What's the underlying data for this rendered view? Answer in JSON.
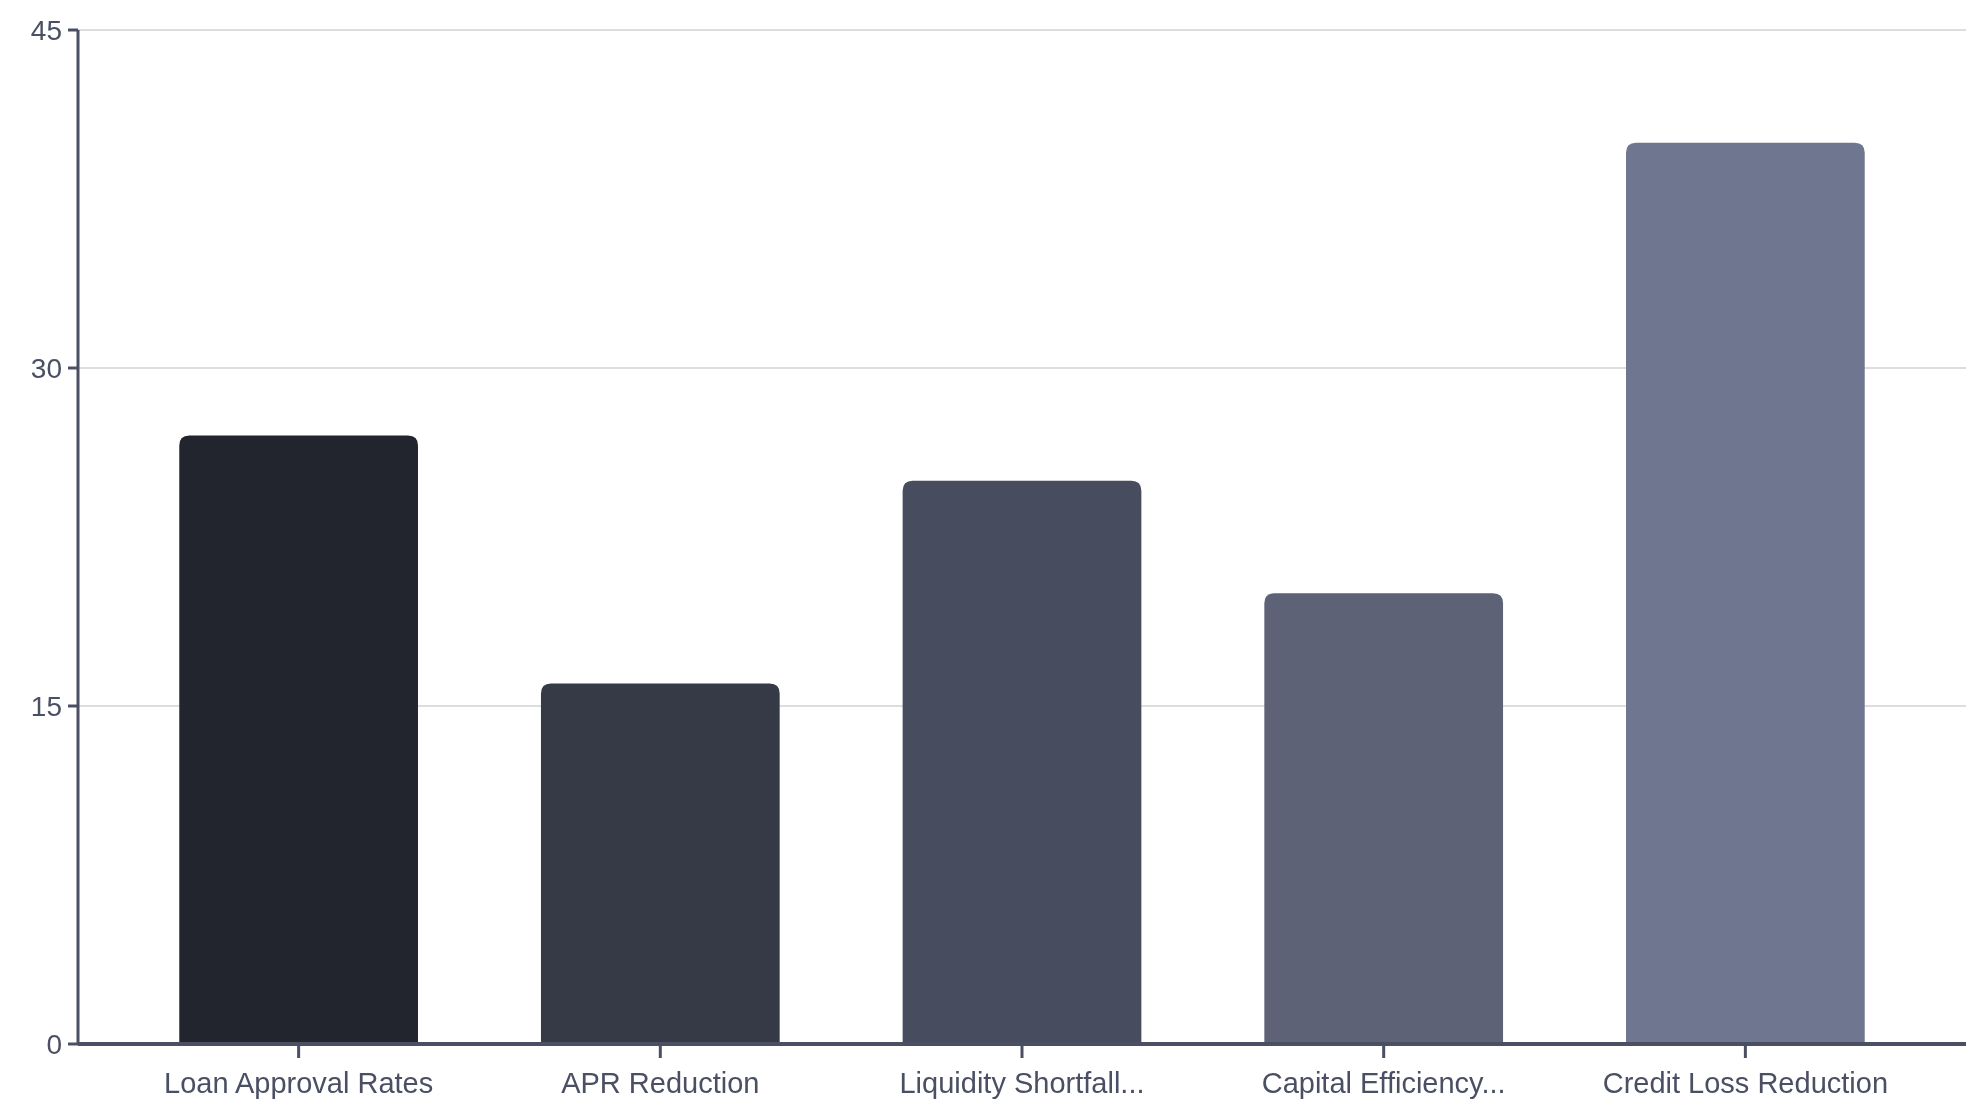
{
  "chart_data": {
    "type": "bar",
    "categories": [
      "Loan Approval Rates",
      "APR Reduction",
      "Liquidity Shortfall...",
      "Capital Efficiency...",
      "Credit Loss Reduction"
    ],
    "values": [
      27,
      16,
      25,
      20,
      40
    ],
    "colors": [
      "#22252d",
      "#363a47",
      "#474d5e",
      "#5d6277",
      "#6f7790"
    ],
    "ylim": [
      0,
      45
    ],
    "yticks": [
      0,
      15,
      30,
      45
    ],
    "grid": "y"
  }
}
